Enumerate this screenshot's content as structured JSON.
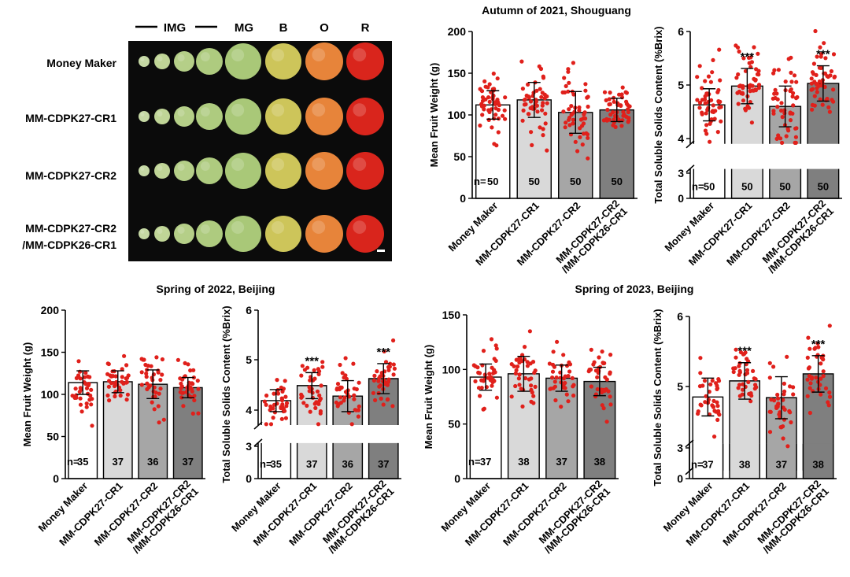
{
  "panel_a": {
    "stage_labels": [
      "IMG",
      "MG",
      "B",
      "O",
      "R"
    ],
    "row_labels": [
      "Money Maker",
      "MM-CDPK27-CR1",
      "MM-CDPK27-CR2",
      "MM-CDPK27-CR2",
      "/MM-CDPK26-CR1"
    ]
  },
  "colors": {
    "bar_fills": [
      "#ffffff",
      "#d9d9d9",
      "#a6a6a6",
      "#7f7f7f"
    ],
    "point_color": "#e0201b",
    "photo_bg": "#0b0b0b"
  },
  "chart_data": [
    {
      "type": "bar",
      "group_title": "Autumn of 2021, Shouguang",
      "ylabel": "Mean Fruit Weight (g)",
      "ylim": [
        0,
        200
      ],
      "yticks": [
        "0",
        "50",
        "100",
        "150",
        "200"
      ],
      "categories": [
        "Money Maker",
        "MM-CDPK27-CR1",
        "MM-CDPK27-CR2",
        "MM-CDPK27-CR2/MM-CDPK26-CR1"
      ],
      "values": [
        112,
        118,
        103,
        106
      ],
      "sd": [
        17,
        21,
        25,
        14
      ],
      "n_prefix": "n=",
      "n": [
        "50",
        "50",
        "50",
        "50"
      ],
      "significance": [
        "",
        "",
        "",
        ""
      ]
    },
    {
      "type": "bar",
      "group_title": "Autumn of 2021, Shouguang",
      "ylabel": "Total Soluble Solids Content (%Brix)",
      "ylim": [
        0,
        6
      ],
      "axis_break": [
        3.5,
        3.9
      ],
      "yticks": [
        "0",
        "3",
        "4",
        "5",
        "6"
      ],
      "categories": [
        "Money Maker",
        "MM-CDPK27-CR1",
        "MM-CDPK27-CR2",
        "MM-CDPK27-CR2/MM-CDPK26-CR1"
      ],
      "values": [
        4.63,
        4.98,
        4.6,
        5.03
      ],
      "sd": [
        0.3,
        0.33,
        0.38,
        0.33
      ],
      "n_prefix": "n=",
      "n": [
        "50",
        "50",
        "50",
        "50"
      ],
      "significance": [
        "",
        "***",
        "",
        "***"
      ]
    },
    {
      "type": "bar",
      "group_title": "Spring of 2022, Beijing",
      "ylabel": "Mean Fruit Weight (g)",
      "ylim": [
        0,
        200
      ],
      "yticks": [
        "0",
        "50",
        "100",
        "150",
        "200"
      ],
      "categories": [
        "Money Maker",
        "MM-CDPK27-CR1",
        "MM-CDPK27-CR2",
        "MM-CDPK27-CR2/MM-CDPK26-CR1"
      ],
      "values": [
        114,
        115,
        112,
        108
      ],
      "sd": [
        14,
        13,
        17,
        12
      ],
      "n_prefix": "n=",
      "n": [
        "35",
        "37",
        "36",
        "37"
      ],
      "significance": [
        "",
        "",
        "",
        ""
      ]
    },
    {
      "type": "bar",
      "group_title": "Spring of 2022, Beijing",
      "ylabel": "Total Soluble Solids Content (%Brix)",
      "ylim": [
        0,
        6
      ],
      "axis_break": [
        3.3,
        3.7
      ],
      "yticks": [
        "0",
        "3",
        "4",
        "5",
        "6"
      ],
      "categories": [
        "Money Maker",
        "MM-CDPK27-CR1",
        "MM-CDPK27-CR2",
        "MM-CDPK27-CR2/MM-CDPK26-CR1"
      ],
      "values": [
        4.19,
        4.49,
        4.28,
        4.63
      ],
      "sd": [
        0.22,
        0.26,
        0.31,
        0.3
      ],
      "n_prefix": "n=",
      "n": [
        "35",
        "37",
        "36",
        "37"
      ],
      "significance": [
        "",
        "***",
        "",
        "***"
      ]
    },
    {
      "type": "bar",
      "group_title": "Spring of 2023, Beijing",
      "ylabel": "Mean Fruit Weight (g)",
      "ylim": [
        0,
        150
      ],
      "yticks": [
        "0",
        "50",
        "100",
        "150"
      ],
      "categories": [
        "Money Maker",
        "MM-CDPK27-CR1",
        "MM-CDPK27-CR2",
        "MM-CDPK27-CR2/MM-CDPK26-CR1"
      ],
      "values": [
        93,
        96,
        92,
        89
      ],
      "sd": [
        12,
        16,
        12,
        13
      ],
      "n_prefix": "n=",
      "n": [
        "37",
        "38",
        "37",
        "38"
      ],
      "significance": [
        "",
        "",
        "",
        ""
      ]
    },
    {
      "type": "bar",
      "group_title": "Spring of 2023, Beijing",
      "ylabel": "Total Soluble Solids Content (%Brix)",
      "ylim": [
        0,
        6
      ],
      "axis_break": [
        3.4,
        3.8
      ],
      "yticks": [
        "0",
        "3",
        "5",
        "6"
      ],
      "categories": [
        "Money Maker",
        "MM-CDPK27-CR1",
        "MM-CDPK27-CR2",
        "MM-CDPK27-CR2/MM-CDPK26-CR1"
      ],
      "values": [
        4.85,
        5.08,
        4.84,
        5.18
      ],
      "sd": [
        0.27,
        0.26,
        0.3,
        0.26
      ],
      "n_prefix": "n=",
      "n": [
        "37",
        "38",
        "37",
        "38"
      ],
      "significance": [
        "",
        "***",
        "",
        "***"
      ]
    }
  ]
}
